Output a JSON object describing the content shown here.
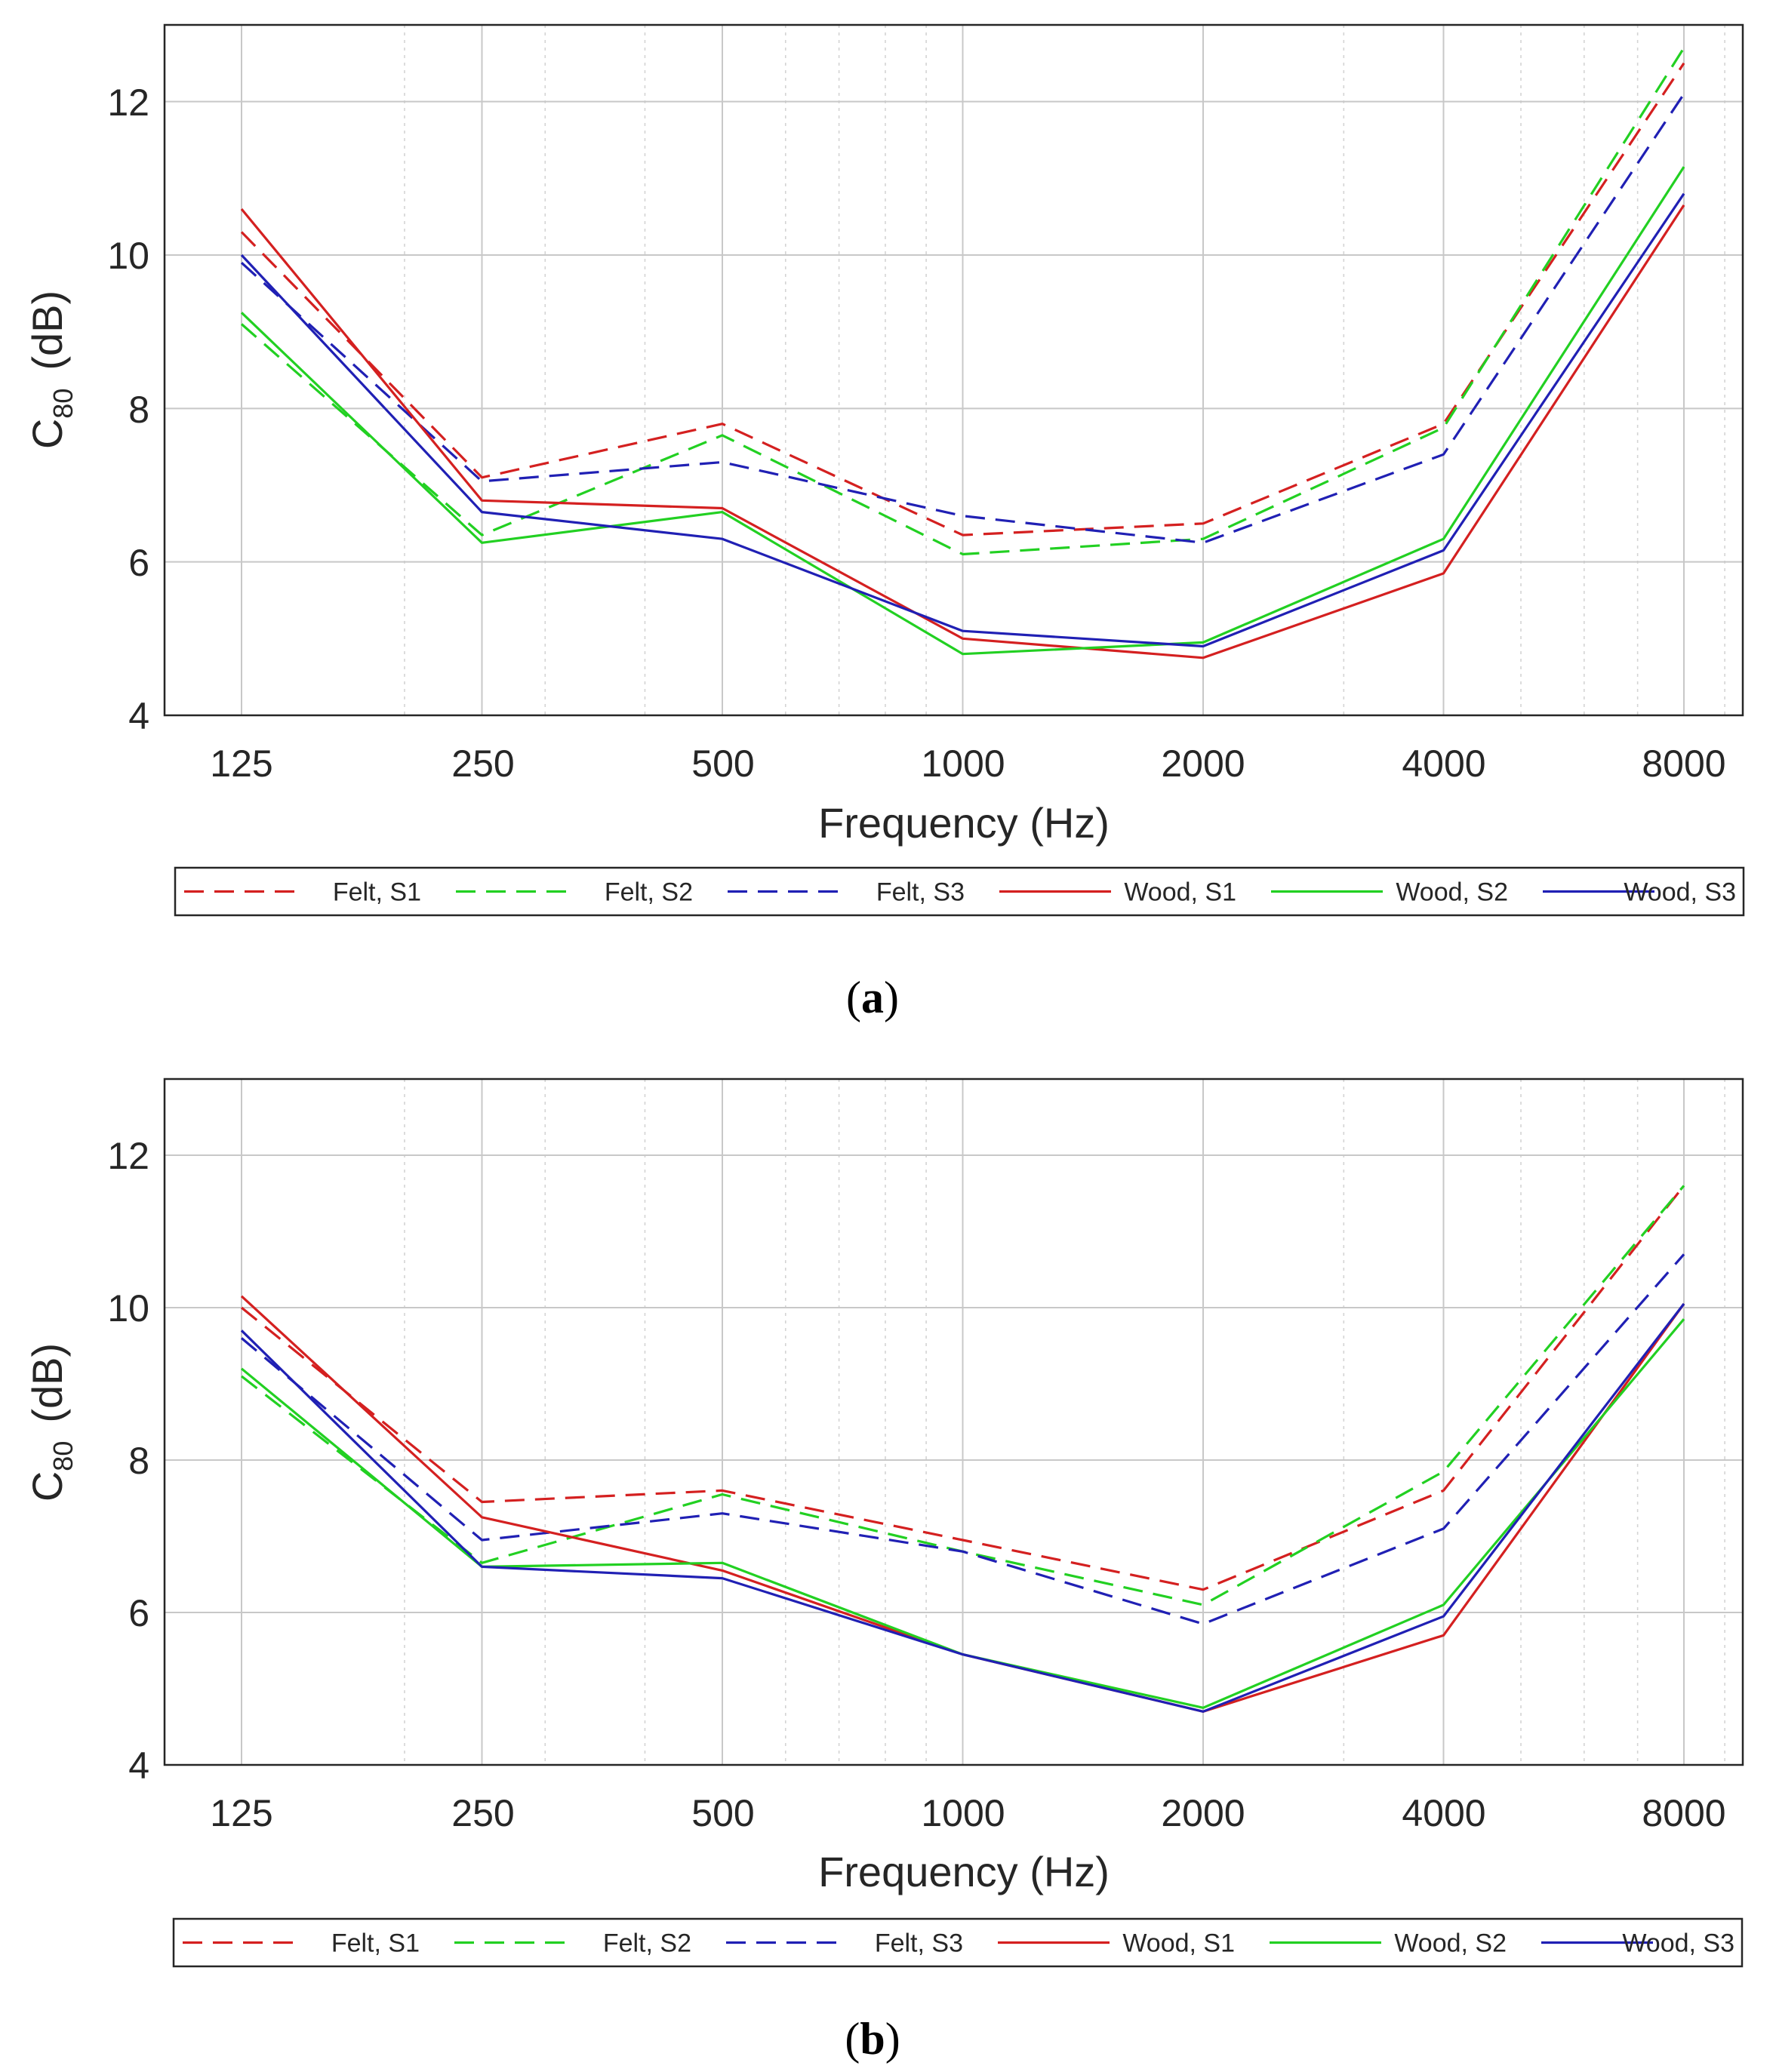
{
  "colors": {
    "S1": "#d42020",
    "S2": "#22d022",
    "S3": "#2020b4",
    "axis": "#262626",
    "grid": "#c8c8c8"
  },
  "chart_data": [
    {
      "type": "line",
      "panel_label": {
        "open": "(",
        "letter": "a",
        "close": ")"
      },
      "x": [
        125,
        250,
        500,
        1000,
        2000,
        4000,
        8000
      ],
      "xscale": "log",
      "xlabel": "Frequency (Hz)",
      "ylabel": {
        "main": "C",
        "sub": "80",
        "unit": "(dB)"
      },
      "xticks": [
        "125",
        "250",
        "500",
        "1000",
        "2000",
        "4000",
        "8000"
      ],
      "yticks": [
        "4",
        "6",
        "8",
        "10",
        "12"
      ],
      "ylim": [
        4,
        13
      ],
      "grid": true,
      "legend": "bottom",
      "series": [
        {
          "name": "Felt, S1",
          "style": "dashed",
          "color_key": "S1",
          "values": [
            10.3,
            7.1,
            7.8,
            6.35,
            6.5,
            7.8,
            12.5
          ]
        },
        {
          "name": "Felt, S2",
          "style": "dashed",
          "color_key": "S2",
          "values": [
            9.1,
            6.35,
            7.65,
            6.1,
            6.3,
            7.75,
            12.7
          ]
        },
        {
          "name": "Felt, S3",
          "style": "dashed",
          "color_key": "S3",
          "values": [
            9.9,
            7.05,
            7.3,
            6.6,
            6.25,
            7.4,
            12.1
          ]
        },
        {
          "name": "Wood, S1",
          "style": "solid",
          "color_key": "S1",
          "values": [
            10.6,
            6.8,
            6.7,
            5.0,
            4.75,
            5.85,
            10.65
          ]
        },
        {
          "name": "Wood, S2",
          "style": "solid",
          "color_key": "S2",
          "values": [
            9.25,
            6.25,
            6.65,
            4.8,
            4.95,
            6.3,
            11.15
          ]
        },
        {
          "name": "Wood, S3",
          "style": "solid",
          "color_key": "S3",
          "values": [
            10.0,
            6.65,
            6.3,
            5.1,
            4.9,
            6.15,
            10.8
          ]
        }
      ]
    },
    {
      "type": "line",
      "panel_label": {
        "open": "(",
        "letter": "b",
        "close": ")"
      },
      "x": [
        125,
        250,
        500,
        1000,
        2000,
        4000,
        8000
      ],
      "xscale": "log",
      "xlabel": "Frequency (Hz)",
      "ylabel": {
        "main": "C",
        "sub": "80",
        "unit": "(dB)"
      },
      "xticks": [
        "125",
        "250",
        "500",
        "1000",
        "2000",
        "4000",
        "8000"
      ],
      "yticks": [
        "4",
        "6",
        "8",
        "10",
        "12"
      ],
      "ylim": [
        4,
        13
      ],
      "grid": true,
      "legend": "bottom",
      "series": [
        {
          "name": "Felt, S1",
          "style": "dashed",
          "color_key": "S1",
          "values": [
            10.0,
            7.45,
            7.6,
            6.95,
            6.3,
            7.6,
            11.6
          ]
        },
        {
          "name": "Felt, S2",
          "style": "dashed",
          "color_key": "S2",
          "values": [
            9.1,
            6.65,
            7.55,
            6.8,
            6.1,
            7.85,
            11.6
          ]
        },
        {
          "name": "Felt, S3",
          "style": "dashed",
          "color_key": "S3",
          "values": [
            9.6,
            6.95,
            7.3,
            6.8,
            5.85,
            7.1,
            10.7
          ]
        },
        {
          "name": "Wood, S1",
          "style": "solid",
          "color_key": "S1",
          "values": [
            10.15,
            7.25,
            6.55,
            5.45,
            4.7,
            5.7,
            10.05
          ]
        },
        {
          "name": "Wood, S2",
          "style": "solid",
          "color_key": "S2",
          "values": [
            9.2,
            6.6,
            6.65,
            5.45,
            4.75,
            6.1,
            9.85
          ]
        },
        {
          "name": "Wood, S3",
          "style": "solid",
          "color_key": "S3",
          "values": [
            9.7,
            6.6,
            6.45,
            5.45,
            4.7,
            5.95,
            10.05
          ]
        }
      ]
    }
  ]
}
